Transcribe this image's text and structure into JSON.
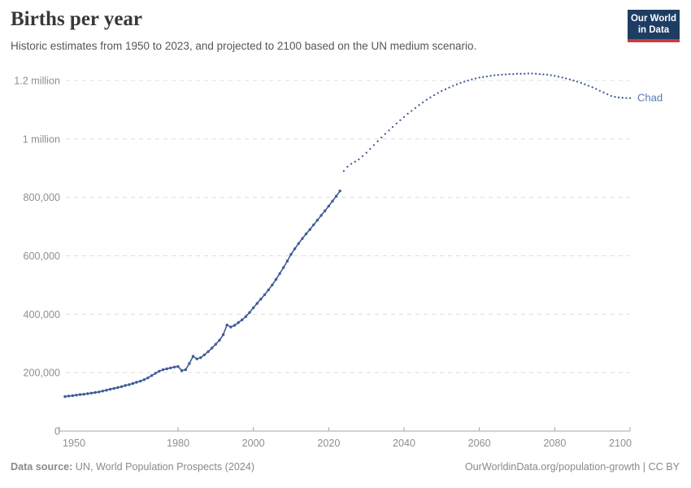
{
  "header": {
    "title": "Births per year",
    "subtitle": "Historic estimates from 1950 to 2023, and projected to 2100 based on the UN medium scenario.",
    "logo": {
      "line1": "Our World",
      "line2": "in Data"
    }
  },
  "footer": {
    "source_label": "Data source:",
    "source_value": " UN, World Population Prospects (2024)",
    "right_text": "OurWorldinData.org/population-growth | CC BY"
  },
  "colors": {
    "series": "#3e5c97",
    "entity_label": "#5878b3",
    "grid": "#dcdcdc",
    "axis": "#a5a5a5",
    "tick_label": "#8f8f8f",
    "logo_bg": "#1d3d63",
    "logo_accent": "#cc3b3e",
    "title": "#383838",
    "subtitle": "#565656"
  },
  "chart_data": {
    "type": "line",
    "title": "Births per year",
    "subtitle": "Historic estimates from 1950 to 2023, and projected to 2100 based on the UN medium scenario.",
    "entity": "Chad",
    "end_label": "Chad",
    "xlabel": "",
    "ylabel": "",
    "grid": true,
    "x_range": [
      1950,
      2100
    ],
    "y_range": [
      0,
      1200000
    ],
    "x_ticks": [
      1950,
      1980,
      2000,
      2020,
      2040,
      2060,
      2080,
      2100
    ],
    "y_ticks": [
      {
        "value": 0,
        "label": "0"
      },
      {
        "value": 200000,
        "label": "200,000"
      },
      {
        "value": 400000,
        "label": "400,000"
      },
      {
        "value": 600000,
        "label": "600,000"
      },
      {
        "value": 800000,
        "label": "800,000"
      },
      {
        "value": 1000000,
        "label": "1 million"
      },
      {
        "value": 1200000,
        "label": "1.2 million"
      }
    ],
    "series": [
      {
        "name": "Chad — historic estimates",
        "style": "solid",
        "start_year": 1950,
        "end_year": 2023,
        "values": [
          118000,
          120000,
          121000,
          123000,
          125000,
          126000,
          128000,
          130000,
          132000,
          134000,
          137000,
          140000,
          143000,
          146000,
          149000,
          152000,
          156000,
          159000,
          163000,
          167000,
          171000,
          176000,
          182000,
          190000,
          198000,
          205000,
          210000,
          213000,
          216000,
          219000,
          221000,
          207000,
          210000,
          231000,
          256000,
          247000,
          251000,
          261000,
          272000,
          284000,
          297000,
          311000,
          330000,
          363000,
          356000,
          362000,
          371000,
          381000,
          392000,
          406000,
          422000,
          437000,
          452000,
          467000,
          483000,
          500000,
          519000,
          539000,
          560000,
          582000,
          605000,
          624000,
          642000,
          659000,
          675000,
          690000,
          706000,
          722000,
          738000,
          754000,
          770000,
          787000,
          804000,
          822000
        ]
      },
      {
        "name": "Chad — UN medium scenario projection",
        "style": "dotted",
        "start_year": 2024,
        "end_year": 2100,
        "values": [
          890000,
          905000,
          915000,
          922000,
          930000,
          941000,
          953000,
          966000,
          979000,
          992000,
          1005000,
          1017000,
          1029000,
          1041000,
          1053000,
          1064000,
          1075000,
          1086000,
          1096000,
          1106000,
          1116000,
          1125000,
          1134000,
          1142000,
          1150000,
          1157000,
          1164000,
          1170000,
          1176000,
          1182000,
          1187000,
          1192000,
          1196000,
          1200000,
          1204000,
          1207000,
          1210000,
          1212000,
          1214000,
          1216000,
          1218000,
          1219000,
          1220000,
          1221000,
          1222000,
          1222000,
          1223000,
          1223000,
          1223000,
          1224000,
          1224000,
          1223000,
          1222000,
          1221000,
          1220000,
          1218000,
          1216000,
          1213000,
          1210000,
          1207000,
          1204000,
          1200000,
          1196000,
          1192000,
          1187000,
          1182000,
          1177000,
          1171000,
          1165000,
          1159000,
          1153000,
          1147000,
          1144000,
          1142000,
          1141000,
          1140000,
          1140000
        ]
      }
    ]
  }
}
